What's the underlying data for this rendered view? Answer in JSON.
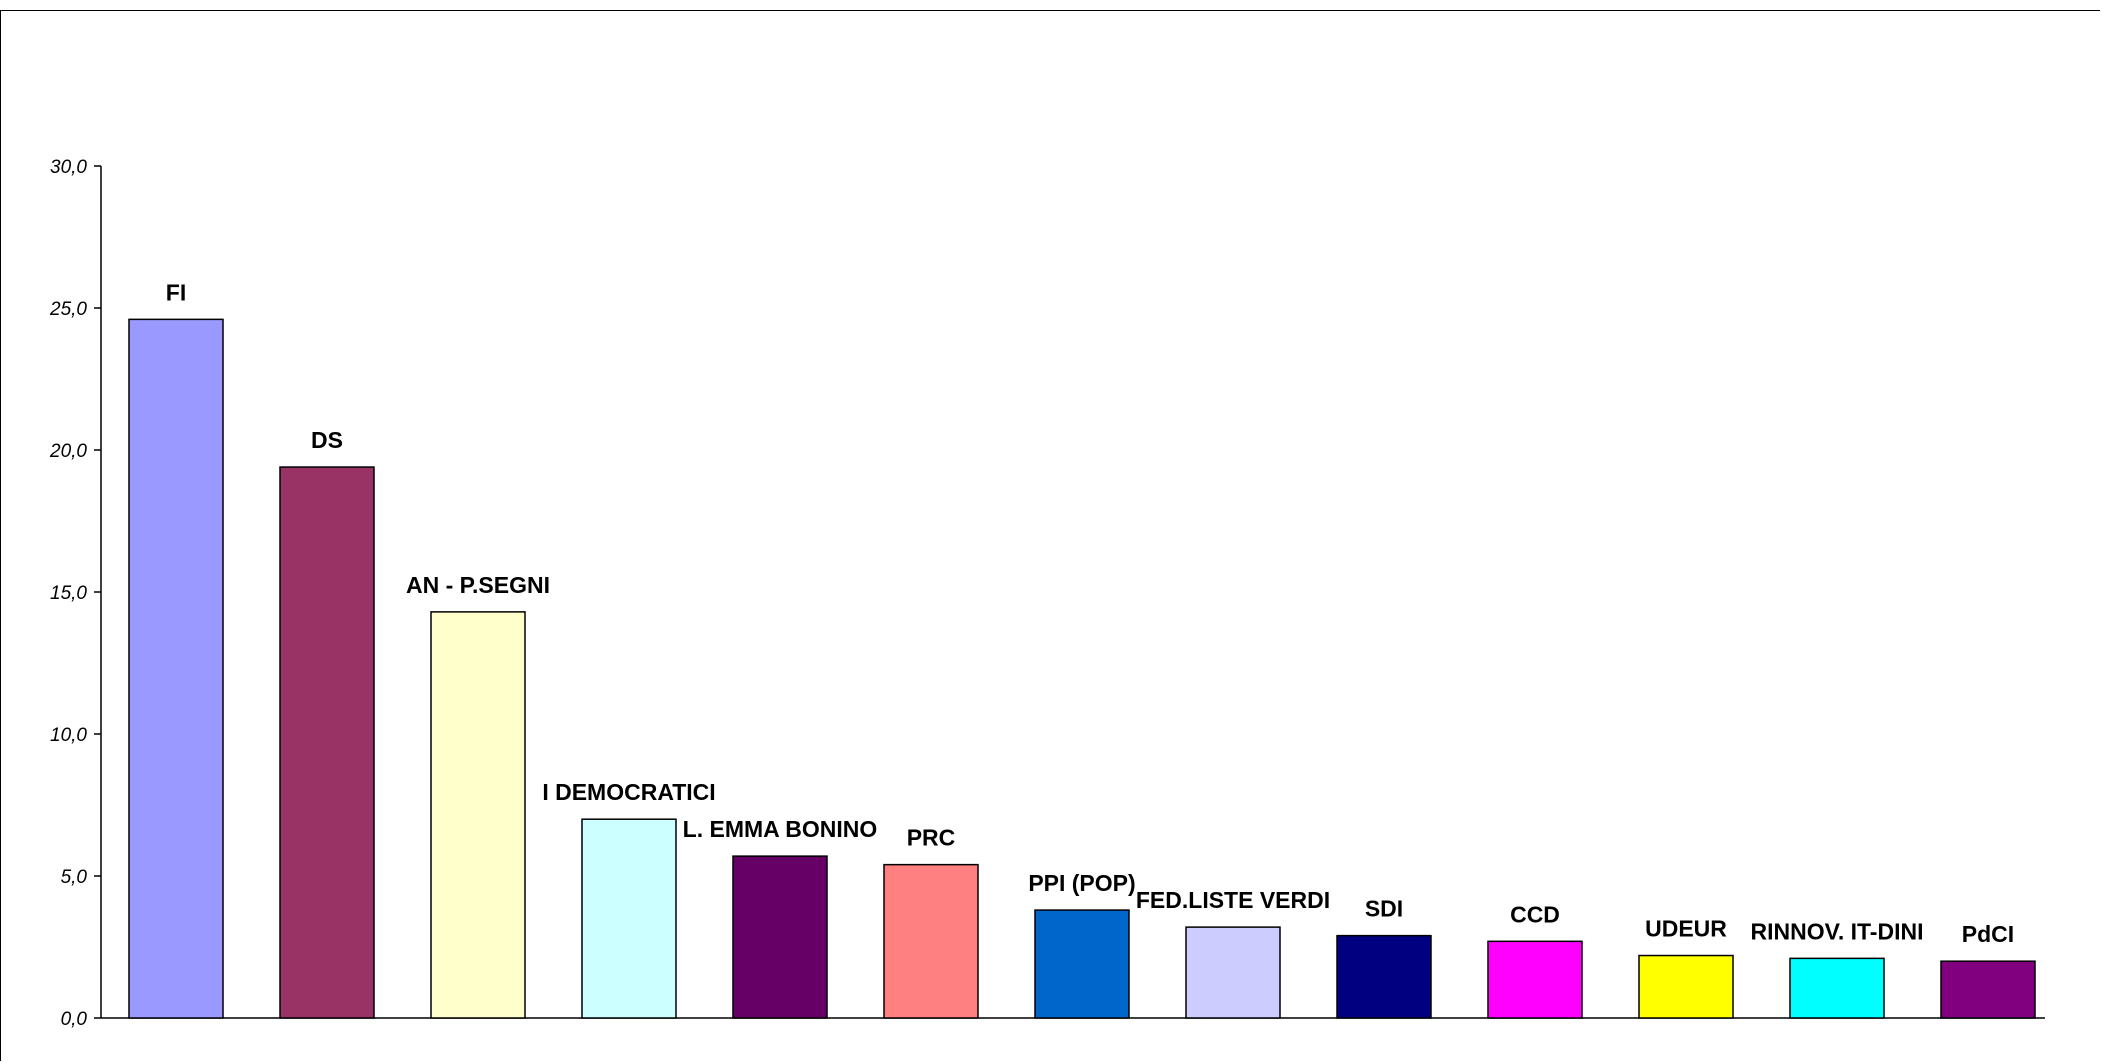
{
  "chart_data": {
    "type": "bar",
    "title": "",
    "xlabel": "",
    "ylabel": "",
    "ylim": [
      0,
      30
    ],
    "yticks": [
      "0,0",
      "5,0",
      "10,0",
      "15,0",
      "20,0",
      "25,0",
      "30,0"
    ],
    "grid": false,
    "legend": "none",
    "categories": [
      "FI",
      "DS",
      "AN - P.SEGNI",
      "I DEMOCRATICI",
      "L. EMMA BONINO",
      "PRC",
      "PPI (POP)",
      "FED.LISTE VERDI",
      "SDI",
      "CCD",
      "UDEUR",
      "RINNOV. IT-DINI",
      "PdCI"
    ],
    "values": [
      24.6,
      19.4,
      14.3,
      7.0,
      5.7,
      5.4,
      3.8,
      3.2,
      2.9,
      2.7,
      2.2,
      2.1,
      2.0
    ],
    "colors": [
      "#9999FF",
      "#993366",
      "#FFFFCC",
      "#CCFFFF",
      "#660066",
      "#FF8080",
      "#0066CC",
      "#CCCCFF",
      "#000080",
      "#FF00FF",
      "#FFFF00",
      "#00FFFF",
      "#800080"
    ]
  }
}
